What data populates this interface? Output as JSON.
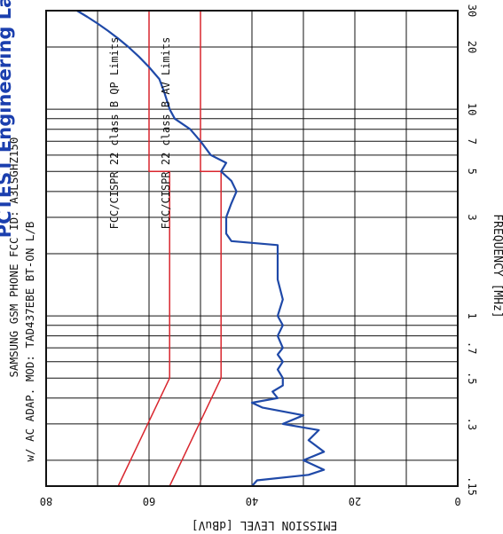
{
  "brand": "PCTEST Engineering Lab.",
  "header": {
    "line1": "SAMSUNG GSM PHONE FCC ID: A3LSGHZ150",
    "line2": "w/ AC ADAP. MOD: TAD437EBE BT-ON L/B"
  },
  "colors": {
    "trace": "#1f49a8",
    "limit": "#d9262e",
    "grid": "#111111"
  },
  "chart_data": {
    "type": "line",
    "xlabel": "FREQUENCY [MHz]",
    "ylabel": "EMISSION LEVEL [dBuV]",
    "x_scale": "log",
    "xlim": [
      0.15,
      30
    ],
    "ylim": [
      0,
      80
    ],
    "x_ticks": [
      0.15,
      0.3,
      0.5,
      0.7,
      1,
      3,
      5,
      7,
      10,
      20,
      30
    ],
    "x_tick_labels": [
      ".15",
      ".3",
      ".5",
      ".7",
      "1",
      "3",
      "5",
      "7",
      "10",
      "20",
      "30"
    ],
    "y_ticks": [
      0,
      20,
      40,
      60,
      80
    ],
    "y_tick_labels": [
      "0",
      "20",
      "40",
      "60",
      "80"
    ],
    "grid": true,
    "series": [
      {
        "name": "FCC/CISPR 22 class B QP Limits",
        "x": [
          0.15,
          0.5,
          5,
          5,
          30
        ],
        "y": [
          66,
          56,
          56,
          60,
          60
        ]
      },
      {
        "name": "FCC/CISPR 22 class B AV Limits",
        "x": [
          0.15,
          0.5,
          5,
          5,
          30
        ],
        "y": [
          56,
          46,
          46,
          50,
          50
        ]
      },
      {
        "name": "Emission trace",
        "x": [
          0.15,
          0.16,
          0.17,
          0.18,
          0.2,
          0.22,
          0.25,
          0.28,
          0.3,
          0.33,
          0.36,
          0.38,
          0.4,
          0.43,
          0.46,
          0.5,
          0.55,
          0.6,
          0.65,
          0.7,
          0.8,
          0.9,
          1.0,
          1.2,
          1.5,
          1.8,
          2.0,
          2.2,
          2.3,
          2.5,
          3.0,
          3.5,
          4.0,
          4.5,
          5.0,
          5.5,
          6.0,
          7.0,
          8.0,
          9.0,
          10,
          12,
          14,
          16,
          18,
          20,
          22,
          24,
          26,
          28,
          30
        ],
        "y": [
          40,
          39,
          29,
          26,
          30,
          26,
          29,
          27,
          34,
          30,
          38,
          40,
          35,
          36,
          34,
          34,
          35,
          34,
          35,
          34,
          35,
          34,
          35,
          34,
          35,
          35,
          35,
          35,
          44,
          45,
          45,
          44,
          43,
          44,
          46,
          45,
          48,
          50,
          52,
          55,
          56,
          57,
          58,
          60,
          62,
          64,
          66,
          68,
          70,
          72,
          74
        ]
      }
    ]
  }
}
